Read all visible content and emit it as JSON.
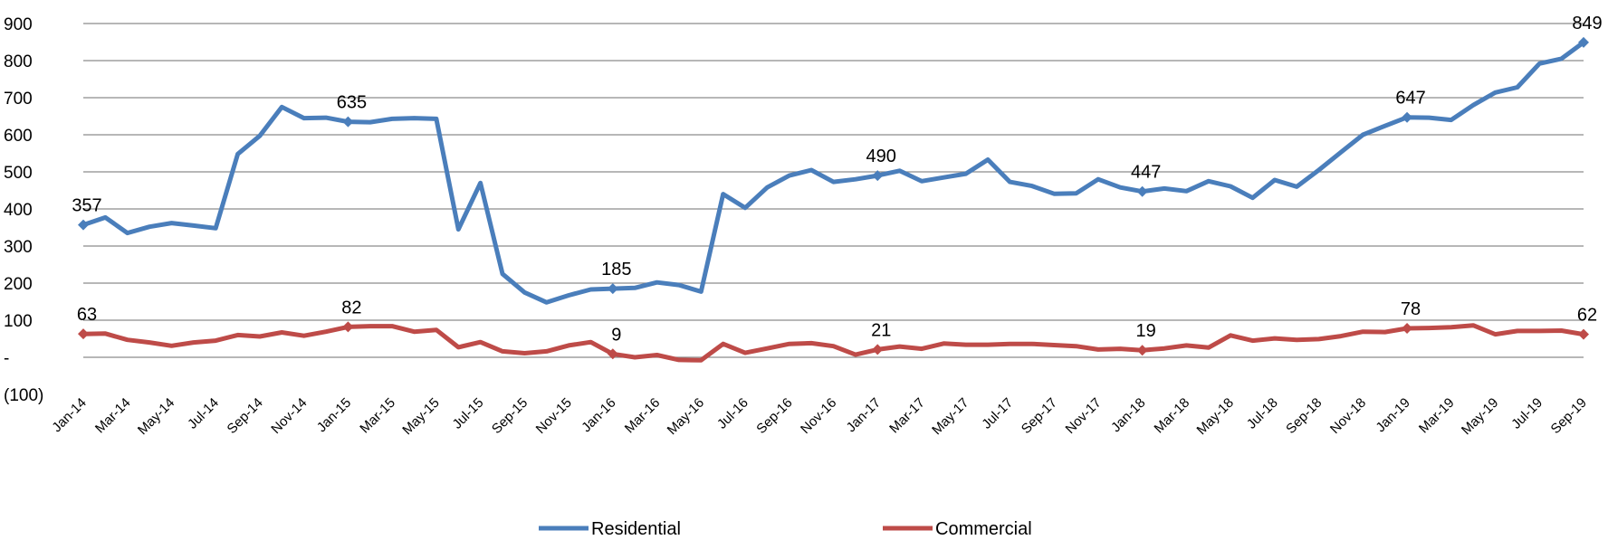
{
  "chart_data": {
    "type": "line",
    "title": "",
    "xlabel": "",
    "ylabel": "",
    "ylim": [
      -100,
      900
    ],
    "y_ticks": [
      {
        "value": 900,
        "label": "900"
      },
      {
        "value": 800,
        "label": "800"
      },
      {
        "value": 700,
        "label": "700"
      },
      {
        "value": 600,
        "label": "600"
      },
      {
        "value": 500,
        "label": "500"
      },
      {
        "value": 400,
        "label": "400"
      },
      {
        "value": 300,
        "label": "300"
      },
      {
        "value": 200,
        "label": "200"
      },
      {
        "value": 100,
        "label": "100"
      },
      {
        "value": 0,
        "label": "-"
      },
      {
        "value": -100,
        "label": "(100)"
      }
    ],
    "grid": true,
    "legend_position": "bottom",
    "x": [
      "Jan-14",
      "Feb-14",
      "Mar-14",
      "Apr-14",
      "May-14",
      "Jun-14",
      "Jul-14",
      "Aug-14",
      "Sep-14",
      "Oct-14",
      "Nov-14",
      "Dec-14",
      "Jan-15",
      "Feb-15",
      "Mar-15",
      "Apr-15",
      "May-15",
      "Jun-15",
      "Jul-15",
      "Aug-15",
      "Sep-15",
      "Oct-15",
      "Nov-15",
      "Dec-15",
      "Jan-16",
      "Feb-16",
      "Mar-16",
      "Apr-16",
      "May-16",
      "Jun-16",
      "Jul-16",
      "Aug-16",
      "Sep-16",
      "Oct-16",
      "Nov-16",
      "Dec-16",
      "Jan-17",
      "Feb-17",
      "Mar-17",
      "Apr-17",
      "May-17",
      "Jun-17",
      "Jul-17",
      "Aug-17",
      "Sep-17",
      "Oct-17",
      "Nov-17",
      "Dec-17",
      "Jan-18",
      "Feb-18",
      "Mar-18",
      "Apr-18",
      "May-18",
      "Jun-18",
      "Jul-18",
      "Aug-18",
      "Sep-18",
      "Oct-18",
      "Nov-18",
      "Dec-18",
      "Jan-19",
      "Feb-19",
      "Mar-19",
      "Apr-19",
      "May-19",
      "Jun-19",
      "Jul-19",
      "Aug-19",
      "Sep-19"
    ],
    "x_tick_labels": [
      "Jan-14",
      "Mar-14",
      "May-14",
      "Jul-14",
      "Sep-14",
      "Nov-14",
      "Jan-15",
      "Mar-15",
      "May-15",
      "Jul-15",
      "Sep-15",
      "Nov-15",
      "Jan-16",
      "Mar-16",
      "May-16",
      "Jul-16",
      "Sep-16",
      "Nov-16",
      "Jan-17",
      "Mar-17",
      "May-17",
      "Jul-17",
      "Sep-17",
      "Nov-17",
      "Jan-18",
      "Mar-18",
      "May-18",
      "Jul-18",
      "Sep-18",
      "Nov-18",
      "Jan-19",
      "Mar-19",
      "May-19",
      "Jul-19",
      "Sep-19"
    ],
    "series": [
      {
        "name": "Residential",
        "color": "#4a7ebb",
        "values": [
          357,
          377,
          335,
          352,
          362,
          355,
          348,
          548,
          597,
          675,
          645,
          646,
          635,
          634,
          643,
          645,
          643,
          345,
          470,
          225,
          175,
          148,
          167,
          183,
          185,
          187,
          202,
          195,
          177,
          440,
          403,
          458,
          490,
          505,
          473,
          480,
          490,
          503,
          475,
          485,
          495,
          533,
          473,
          462,
          441,
          442,
          480,
          458,
          447,
          455,
          448,
          475,
          461,
          430,
          478,
          460,
          505,
          553,
          600,
          624,
          647,
          646,
          640,
          680,
          714,
          728,
          792,
          805,
          849
        ],
        "labels": [
          {
            "index": 0,
            "text": "357"
          },
          {
            "index": 12,
            "text": "635"
          },
          {
            "index": 24,
            "text": "185"
          },
          {
            "index": 36,
            "text": "490"
          },
          {
            "index": 48,
            "text": "447"
          },
          {
            "index": 60,
            "text": "647"
          },
          {
            "index": 68,
            "text": "849"
          }
        ]
      },
      {
        "name": "Commercial",
        "color": "#be4b48",
        "values": [
          63,
          64,
          47,
          40,
          31,
          40,
          45,
          60,
          56,
          67,
          58,
          69,
          82,
          84,
          84,
          69,
          74,
          27,
          41,
          16,
          11,
          16,
          32,
          41,
          9,
          0,
          6,
          -7,
          -8,
          36,
          12,
          24,
          36,
          38,
          30,
          7,
          21,
          29,
          23,
          37,
          34,
          34,
          36,
          36,
          33,
          30,
          21,
          23,
          19,
          24,
          32,
          26,
          59,
          45,
          51,
          47,
          49,
          57,
          69,
          68,
          78,
          79,
          81,
          86,
          62,
          71,
          71,
          72,
          62
        ],
        "labels": [
          {
            "index": 0,
            "text": "63"
          },
          {
            "index": 12,
            "text": "82"
          },
          {
            "index": 24,
            "text": "9"
          },
          {
            "index": 36,
            "text": "21"
          },
          {
            "index": 48,
            "text": "19"
          },
          {
            "index": 60,
            "text": "78"
          },
          {
            "index": 68,
            "text": "62"
          }
        ]
      }
    ]
  }
}
